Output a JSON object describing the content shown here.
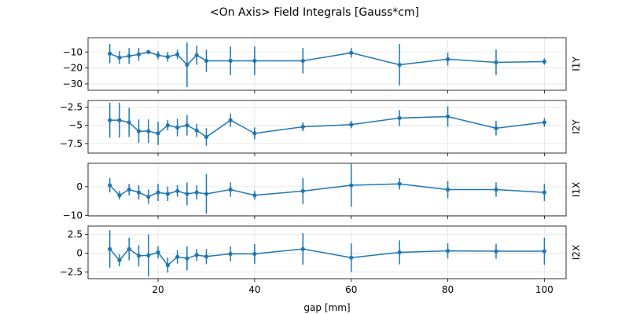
{
  "figure": {
    "title": "<On Axis> Field Integrals [Gauss*cm]",
    "xlabel": "gap [mm]",
    "series_color": "#1f77b4"
  },
  "chart_data": {
    "type": "line",
    "title": "<On Axis> Field Integrals [Gauss*cm]",
    "x": [
      10,
      12,
      14,
      16,
      18,
      20,
      22,
      24,
      26,
      28,
      30,
      35,
      40,
      50,
      60,
      70,
      80,
      90,
      100
    ],
    "xlabel": "gap [mm]",
    "xlim": [
      5.5,
      104.5
    ],
    "xticks": [
      20,
      40,
      60,
      80,
      100
    ],
    "grid": true,
    "panels": [
      {
        "side_label": "I1Y",
        "ylim": [
          -34,
          -1
        ],
        "yticks": [
          -10,
          -20,
          -30
        ],
        "values": [
          -11,
          -13.5,
          -12.5,
          -11.5,
          -10,
          -12,
          -13,
          -11.5,
          -18,
          -12,
          -15.5,
          -15.5,
          -15.5,
          -15.5,
          -10.5,
          -18,
          -14.5,
          -16.5,
          -16
        ],
        "errors": [
          6,
          4,
          5,
          4,
          1,
          2.5,
          3,
          3,
          14,
          6,
          7,
          9,
          9,
          8,
          3,
          13,
          4,
          8,
          2
        ]
      },
      {
        "side_label": "I2Y",
        "ylim": [
          -8.8,
          -1.6
        ],
        "yticks": [
          -2.5,
          -5.0,
          -7.5
        ],
        "values": [
          -4.3,
          -4.3,
          -4.6,
          -5.8,
          -5.8,
          -6.1,
          -5.0,
          -5.3,
          -5.0,
          -5.7,
          -6.6,
          -4.3,
          -6.1,
          -5.2,
          -4.9,
          -4.0,
          -3.8,
          -5.4,
          -4.6
        ],
        "errors": [
          2.4,
          2.4,
          2.0,
          1.6,
          1.6,
          1.6,
          0.7,
          1.2,
          1.4,
          0.9,
          1.2,
          0.9,
          0.8,
          0.6,
          0.5,
          1.1,
          1.4,
          1.0,
          0.6
        ]
      },
      {
        "side_label": "I1X",
        "ylim": [
          -10.2,
          8.2
        ],
        "yticks": [
          0,
          -10
        ],
        "values": [
          0.5,
          -3,
          -1,
          -2,
          -3.5,
          -2,
          -2.5,
          -1.5,
          -2.5,
          -2,
          -2.5,
          -1,
          -3,
          -1.5,
          0.5,
          1,
          -1,
          -1,
          -2
        ],
        "errors": [
          2.5,
          1.5,
          2,
          2.5,
          2.5,
          3,
          2.5,
          2,
          4,
          2.5,
          7,
          2.5,
          1.5,
          4.5,
          7.5,
          2,
          3,
          2.5,
          3
        ]
      },
      {
        "side_label": "I2X",
        "ylim": [
          -3.4,
          3.6
        ],
        "yticks": [
          2.5,
          0.0,
          -2.5
        ],
        "values": [
          0.55,
          -0.95,
          0.55,
          -0.35,
          -0.3,
          0.1,
          -1.6,
          -0.5,
          -0.7,
          -0.25,
          -0.45,
          -0.1,
          -0.1,
          0.55,
          -0.6,
          0.1,
          0.3,
          0.25,
          0.25
        ],
        "errors": [
          2.5,
          0.8,
          1.5,
          1.4,
          2.8,
          0.8,
          1.0,
          0.9,
          1.6,
          0.8,
          1.0,
          1.0,
          1.3,
          2.1,
          1.9,
          1.6,
          1.0,
          1.0,
          1.8
        ]
      }
    ]
  }
}
